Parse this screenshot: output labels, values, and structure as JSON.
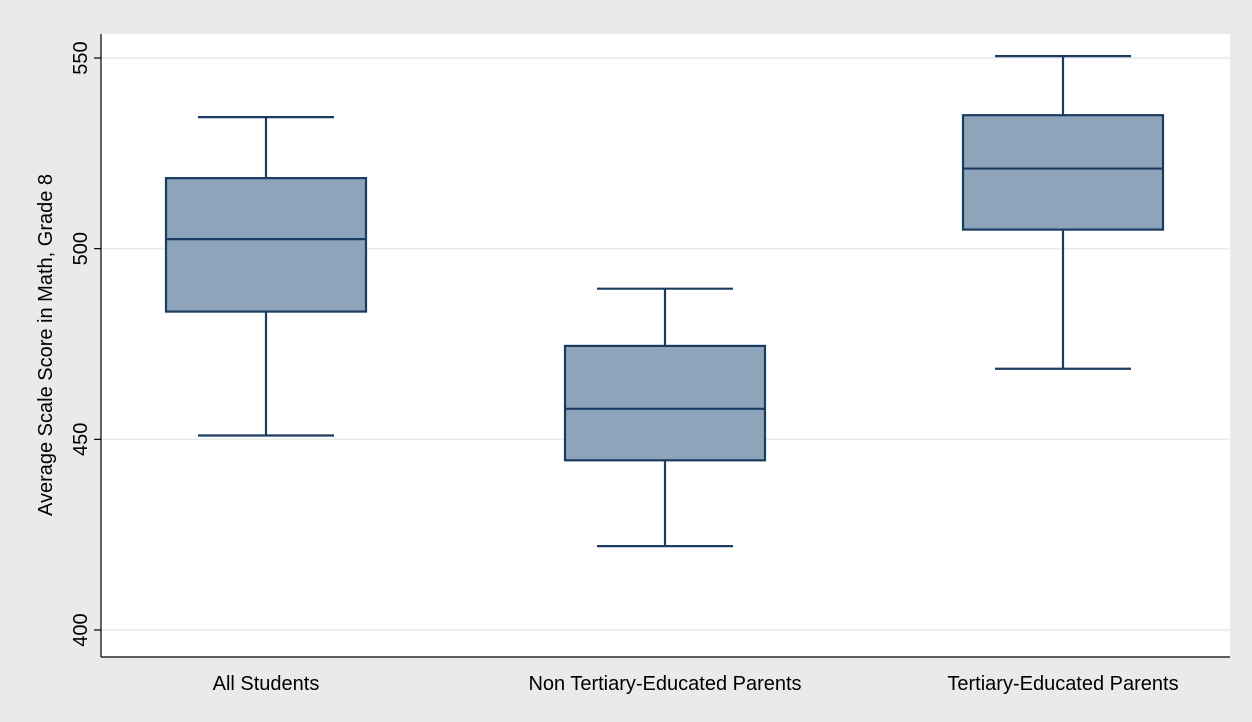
{
  "chart_data": {
    "type": "boxplot",
    "title": "",
    "xlabel": "",
    "ylabel": "Average Scale Score in Math, Grade 8",
    "ylim": [
      400,
      555
    ],
    "yticks": [
      400,
      450,
      500,
      550
    ],
    "grid": true,
    "categories": [
      "All Students",
      "Non Tertiary-Educated Parents",
      "Tertiary-Educated Parents"
    ],
    "boxes": [
      {
        "category": "All Students",
        "whisker_low": 451,
        "q1": 483.5,
        "median": 502.5,
        "q3": 518.5,
        "whisker_high": 534.5
      },
      {
        "category": "Non Tertiary-Educated Parents",
        "whisker_low": 422,
        "q1": 444.5,
        "median": 458,
        "q3": 474.5,
        "whisker_high": 489.5
      },
      {
        "category": "Tertiary-Educated Parents",
        "whisker_low": 468.5,
        "q1": 505,
        "median": 521,
        "q3": 535,
        "whisker_high": 550.5
      }
    ],
    "colors": {
      "box_fill": "#8ea4ba",
      "box_stroke": "#1b3c61",
      "grid": "#e4ecec",
      "plot_bg": "#ffffff",
      "outer_bg": "#eaeaea"
    }
  }
}
